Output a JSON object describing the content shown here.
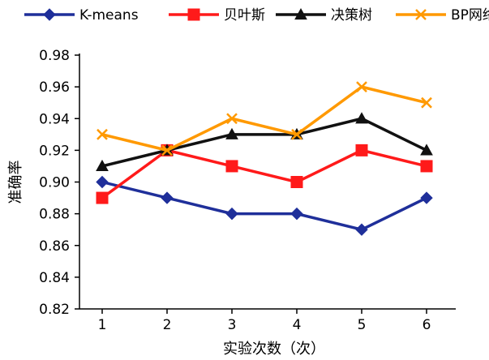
{
  "chart_data": {
    "type": "line",
    "title": "",
    "xlabel": "实验次数（次）",
    "ylabel": "准确率",
    "x": [
      1,
      2,
      3,
      4,
      5,
      6
    ],
    "xlim": [
      0.65,
      6.45
    ],
    "ylim": [
      0.82,
      0.98
    ],
    "yticks": [
      0.82,
      0.84,
      0.86,
      0.88,
      0.9,
      0.92,
      0.94,
      0.96,
      0.98
    ],
    "ytick_labels": [
      "0.82",
      "0.84",
      "0.86",
      "0.88",
      "0.90",
      "0.92",
      "0.94",
      "0.96",
      "0.98"
    ],
    "xtick_labels": [
      "1",
      "2",
      "3",
      "4",
      "5",
      "6"
    ],
    "grid": false,
    "legend_position": "top",
    "series": [
      {
        "name": "K-means",
        "values": [
          0.9,
          0.89,
          0.88,
          0.88,
          0.87,
          0.89
        ],
        "color": "#1f2f9a",
        "marker": "diamond"
      },
      {
        "name": "贝叶斯",
        "values": [
          0.89,
          0.92,
          0.91,
          0.9,
          0.92,
          0.91
        ],
        "color": "#ff1a1a",
        "marker": "square"
      },
      {
        "name": "决策树",
        "values": [
          0.91,
          0.92,
          0.93,
          0.93,
          0.94,
          0.92
        ],
        "color": "#111111",
        "marker": "triangle"
      },
      {
        "name": "BP网络",
        "values": [
          0.93,
          0.92,
          0.94,
          0.93,
          0.96,
          0.95
        ],
        "color": "#ff9900",
        "marker": "x"
      }
    ]
  }
}
